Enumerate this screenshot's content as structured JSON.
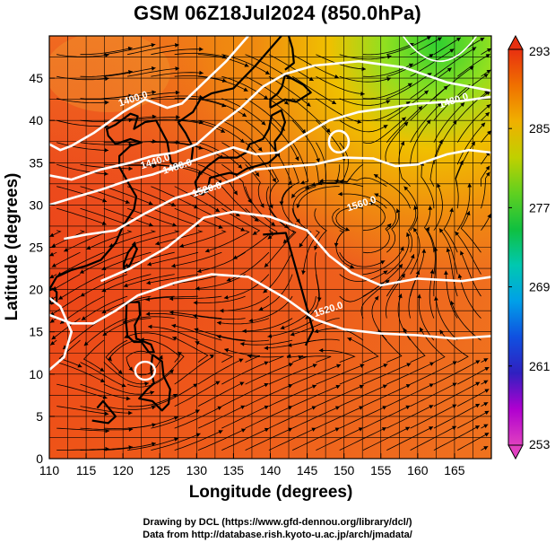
{
  "title": "GSM 06Z18Jul2024 (850.0hPa)",
  "map": {
    "xlabel": "Longitude (degrees)",
    "ylabel": "Latitude  (degrees)",
    "lon_range": [
      110,
      170
    ],
    "lat_range": [
      0,
      50
    ],
    "lon_ticks": [
      "110",
      "115",
      "120",
      "125",
      "130",
      "135",
      "140",
      "145",
      "150",
      "155",
      "160",
      "165"
    ],
    "lat_ticks": [
      "0",
      "5",
      "10",
      "15",
      "20",
      "25",
      "30",
      "35",
      "40",
      "45"
    ],
    "contour_labels": [
      {
        "text": "1400.0",
        "lon": 121.5,
        "lat": 42.2
      },
      {
        "text": "1440.0",
        "lon": 124.5,
        "lat": 34.8
      },
      {
        "text": "1480.0",
        "lon": 127.5,
        "lat": 34.2
      },
      {
        "text": "1520.0",
        "lon": 131.5,
        "lat": 31.5
      },
      {
        "text": "1560.0",
        "lon": 152.5,
        "lat": 29.8
      },
      {
        "text": "1520.0",
        "lon": 148.0,
        "lat": 17.3
      },
      {
        "text": "1480.0",
        "lon": 165.0,
        "lat": 42.0
      }
    ]
  },
  "colorbar": {
    "ticks": [
      "293",
      "285",
      "277",
      "269",
      "261",
      "253"
    ],
    "min": 253,
    "max": 293,
    "colors": [
      "#e040c0",
      "#b000d0",
      "#3020c0",
      "#1050e0",
      "#00a0e8",
      "#00c8b0",
      "#10c040",
      "#60d020",
      "#c0d000",
      "#f0b000",
      "#f07000",
      "#e83010"
    ]
  },
  "credits": {
    "line1": "Drawing by DCL (https://www.gfd-dennou.org/library/dcl/)",
    "line2": "Data from http://database.rish.kyoto-u.ac.jp/arch/jmadata/"
  }
}
